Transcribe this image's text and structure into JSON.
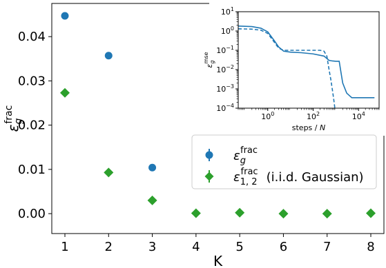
{
  "chart_data": [
    {
      "type": "scatter",
      "xlabel": "K",
      "ylabel_main": "ε",
      "ylabel_sub": "g",
      "ylabel_sup": "frac",
      "xlim": [
        0.7,
        8.3
      ],
      "ylim": [
        -0.0045,
        0.0475
      ],
      "xticks": [
        1,
        2,
        3,
        4,
        5,
        6,
        7,
        8
      ],
      "xtick_labels": [
        "1",
        "2",
        "3",
        "4",
        "5",
        "6",
        "7",
        "8"
      ],
      "yticks": [
        0.0,
        0.01,
        0.02,
        0.03,
        0.04
      ],
      "ytick_labels": [
        "0.00",
        "0.01",
        "0.02",
        "0.03",
        "0.04"
      ],
      "legend_position": "center-right",
      "series": [
        {
          "name": "ε_g^frac",
          "legend_main": "ε",
          "legend_sub": "g",
          "legend_sup": "frac",
          "legend_suffix": "",
          "marker": "circle",
          "color": "#1f77b4",
          "x": [
            1,
            2,
            3
          ],
          "y": [
            0.0447,
            0.0357,
            0.0104
          ]
        },
        {
          "name": "ε_{1,2}^frac (i.i.d. Gaussian)",
          "legend_main": "ε",
          "legend_sub": "1, 2",
          "legend_sup": "frac",
          "legend_suffix": "(i.i.d. Gaussian)",
          "marker": "diamond",
          "color": "#2ca02c",
          "x": [
            1,
            2,
            3,
            4,
            5,
            6,
            7,
            8
          ],
          "y": [
            0.0273,
            0.0093,
            0.003,
            0.0001,
            0.0002,
            0.0,
            0.0,
            0.0001
          ]
        }
      ]
    },
    {
      "type": "line",
      "xlabel": "steps / N",
      "xlabel_plain": "steps / ",
      "xlabel_italic": "N",
      "ylabel_main": "ε",
      "ylabel_sub": "g",
      "ylabel_sup": "mse",
      "xscale": "log",
      "yscale": "log",
      "xlim": [
        0.05,
        80000
      ],
      "ylim": [
        0.0001,
        10
      ],
      "xticks": [
        1,
        100,
        10000
      ],
      "xtick_base": [
        "10",
        "10",
        "10"
      ],
      "xtick_exp": [
        "0",
        "2",
        "4"
      ],
      "yticks": [
        0.0001,
        0.001,
        0.01,
        0.1,
        1,
        10
      ],
      "ytick_base": [
        "10",
        "10",
        "10",
        "10",
        "10",
        "10"
      ],
      "ytick_exp": [
        "−4",
        "−3",
        "−2",
        "−1",
        "0",
        "1"
      ],
      "color": "#1f77b4",
      "series": [
        {
          "style": "solid",
          "x": [
            0.05,
            0.2,
            0.5,
            1,
            2,
            3,
            5,
            10,
            30,
            100,
            300,
            500,
            700,
            1000,
            1200,
            1400,
            1600,
            2000,
            3000,
            5000,
            10000,
            50000
          ],
          "y": [
            1.8,
            1.7,
            1.4,
            0.9,
            0.3,
            0.15,
            0.09,
            0.08,
            0.075,
            0.065,
            0.05,
            0.03,
            0.028,
            0.027,
            0.027,
            0.027,
            0.01,
            0.002,
            0.0006,
            0.00035,
            0.00035,
            0.00035
          ]
        },
        {
          "style": "dashed",
          "x": [
            0.05,
            0.2,
            0.5,
            1,
            2,
            3,
            5,
            10,
            30,
            100,
            200,
            300,
            400,
            500,
            600,
            700,
            800,
            900,
            1000
          ],
          "y": [
            1.3,
            1.25,
            1.1,
            0.75,
            0.25,
            0.13,
            0.1,
            0.1,
            0.1,
            0.1,
            0.1,
            0.09,
            0.05,
            0.01,
            0.003,
            0.0009,
            0.0003,
            0.0001,
            3e-05
          ]
        }
      ]
    }
  ]
}
